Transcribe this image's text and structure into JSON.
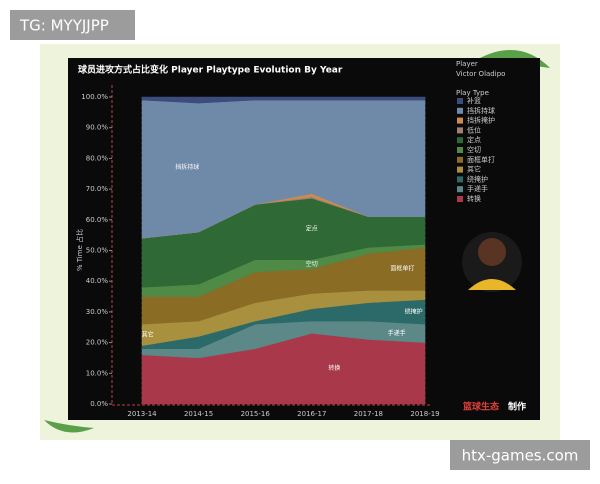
{
  "watermark": "TG: MYYJJPP",
  "site": "htx-games.com",
  "credit": {
    "brand": "篮球生态",
    "suffix": "制作"
  },
  "chart_data": {
    "type": "stacked-area",
    "title": "球员进攻方式占比变化 Player Playtype Evolution By Year",
    "player_label": "Player",
    "player_name": "Victor Oladipo",
    "legend_title": "Play Type",
    "ylabel": "% Time 占比",
    "categories": [
      "2013-14",
      "2014-15",
      "2015-16",
      "2016-17",
      "2017-18",
      "2018-19"
    ],
    "series": [
      {
        "name": "补篮",
        "color": "#3c4c7c",
        "values": [
          1,
          2,
          1,
          1,
          1,
          1
        ]
      },
      {
        "name": "挡拆持球",
        "color": "#6f8aa8",
        "values": [
          45,
          42,
          34,
          30.5,
          38,
          38
        ]
      },
      {
        "name": "挡拆掩护",
        "color": "#d08a50",
        "values": [
          0,
          0,
          0,
          1,
          0,
          0
        ]
      },
      {
        "name": "低位",
        "color": "#a08070",
        "values": [
          0,
          0,
          0,
          0.5,
          0,
          0
        ]
      },
      {
        "name": "定点",
        "color": "#2f6a36",
        "values": [
          16,
          17,
          18,
          20,
          10,
          9
        ]
      },
      {
        "name": "空切",
        "color": "#4f8a46",
        "values": [
          3,
          4,
          4,
          3,
          2,
          1
        ]
      },
      {
        "name": "面框单打",
        "color": "#8a6c24",
        "values": [
          9,
          8,
          10,
          8,
          12,
          14
        ]
      },
      {
        "name": "其它",
        "color": "#a8903e",
        "values": [
          7,
          5,
          6,
          5,
          4,
          3
        ]
      },
      {
        "name": "绕掩护",
        "color": "#2c6a6a",
        "values": [
          1,
          4,
          1,
          4,
          6,
          8
        ]
      },
      {
        "name": "手递手",
        "color": "#5c8888",
        "values": [
          2,
          3,
          8,
          4,
          6,
          6
        ]
      },
      {
        "name": "转换",
        "color": "#a8384a",
        "values": [
          16,
          15,
          18,
          23,
          21,
          20
        ]
      }
    ],
    "ylim": [
      0,
      100
    ],
    "yticks": [
      {
        "value": 0,
        "label": "0.0%"
      },
      {
        "value": 10,
        "label": "10.0%"
      },
      {
        "value": 20,
        "label": "20.0%"
      },
      {
        "value": 30,
        "label": "30.0%"
      },
      {
        "value": 40,
        "label": "40.0%"
      },
      {
        "value": 50,
        "label": "50.0%"
      },
      {
        "value": 60,
        "label": "60.0%"
      },
      {
        "value": 70,
        "label": "70.0%"
      },
      {
        "value": 80,
        "label": "80.0%"
      },
      {
        "value": 90,
        "label": "90.0%"
      },
      {
        "value": 100,
        "label": "100.0%"
      }
    ]
  }
}
